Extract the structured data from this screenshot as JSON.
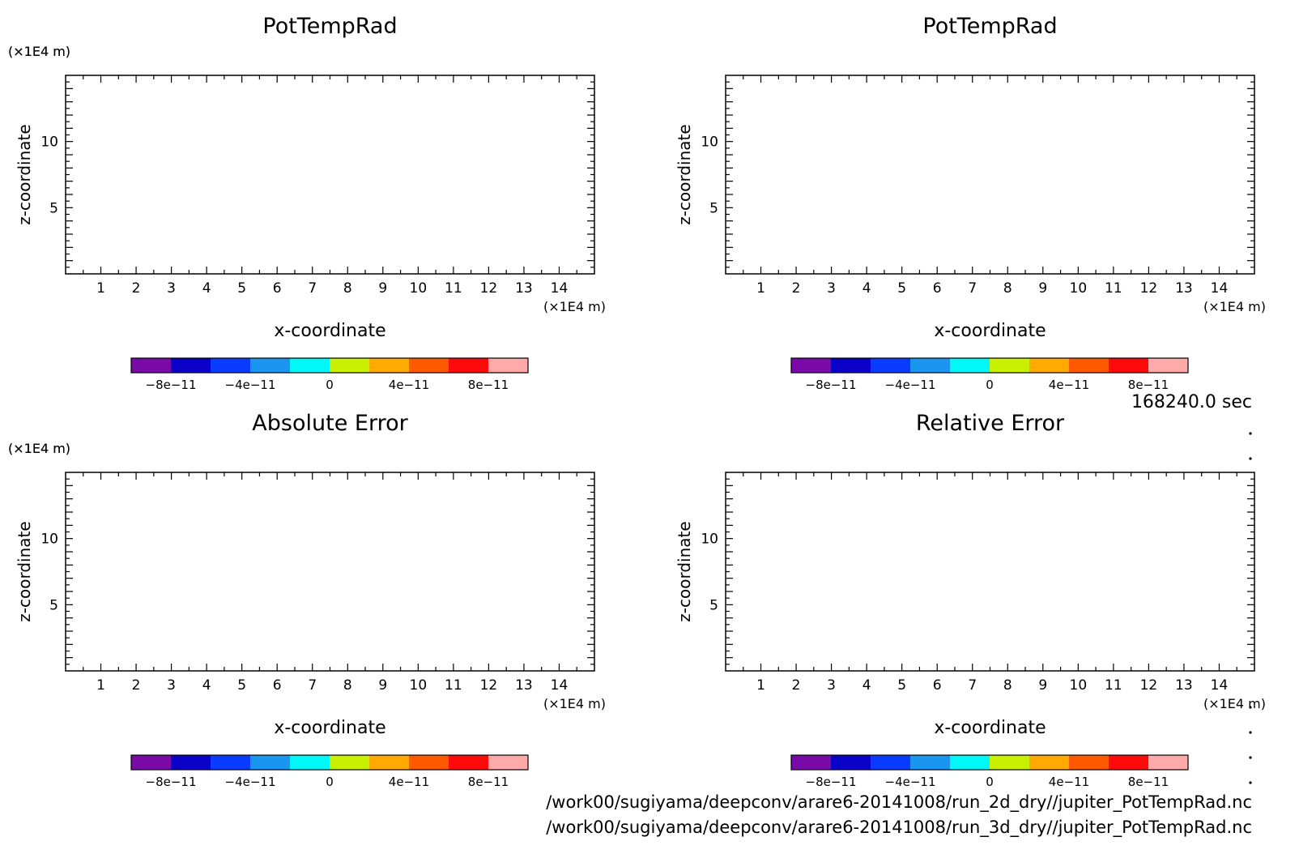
{
  "time_label": "168240.0 sec",
  "files": [
    "/work00/sugiyama/deepconv/arare6-20141008/run_2d_dry//jupiter_PotTempRad.nc",
    "/work00/sugiyama/deepconv/arare6-20141008/run_3d_dry//jupiter_PotTempRad.nc"
  ],
  "colorbar_colors": [
    "#7a0aa8",
    "#0a00c8",
    "#0a3cff",
    "#1a96f0",
    "#00f8f8",
    "#c8f000",
    "#ffaa00",
    "#ff5a00",
    "#ff0a0a",
    "#ffaaaa"
  ],
  "chart_data": [
    {
      "type": "heatmap",
      "title": "PotTempRad",
      "xlabel": "x-coordinate",
      "ylabel": "z-coordinate",
      "x_unit": "(×1E4 m)",
      "y_unit": "(×1E4 m)",
      "xlim": [
        0,
        15
      ],
      "ylim": [
        0,
        15
      ],
      "x_ticks": [
        "1",
        "2",
        "3",
        "4",
        "5",
        "6",
        "7",
        "8",
        "9",
        "10",
        "11",
        "12",
        "13",
        "14"
      ],
      "y_ticks": [
        "5",
        "10"
      ],
      "colorbar_labels": [
        "−8e−11",
        "−4e−11",
        "0",
        "4e−11",
        "8e−11"
      ]
    },
    {
      "type": "heatmap",
      "title": "PotTempRad",
      "xlabel": "x-coordinate",
      "ylabel": "z-coordinate",
      "x_unit": "(×1E4 m)",
      "y_unit": "(×1E4 m)",
      "xlim": [
        0,
        15
      ],
      "ylim": [
        0,
        15
      ],
      "x_ticks": [
        "1",
        "2",
        "3",
        "4",
        "5",
        "6",
        "7",
        "8",
        "9",
        "10",
        "11",
        "12",
        "13",
        "14"
      ],
      "y_ticks": [
        "5",
        "10"
      ],
      "colorbar_labels": [
        "−8e−11",
        "−4e−11",
        "0",
        "4e−11",
        "8e−11"
      ]
    },
    {
      "type": "heatmap",
      "title": "Absolute Error",
      "xlabel": "x-coordinate",
      "ylabel": "z-coordinate",
      "x_unit": "(×1E4 m)",
      "y_unit": "(×1E4 m)",
      "xlim": [
        0,
        15
      ],
      "ylim": [
        0,
        15
      ],
      "x_ticks": [
        "1",
        "2",
        "3",
        "4",
        "5",
        "6",
        "7",
        "8",
        "9",
        "10",
        "11",
        "12",
        "13",
        "14"
      ],
      "y_ticks": [
        "5",
        "10"
      ],
      "colorbar_labels": [
        "−8e−11",
        "−4e−11",
        "0",
        "4e−11",
        "8e−11"
      ]
    },
    {
      "type": "heatmap",
      "title": "Relative Error",
      "xlabel": "x-coordinate",
      "ylabel": "z-coordinate",
      "x_unit": "(×1E4 m)",
      "y_unit": "(×1E4 m)",
      "xlim": [
        0,
        15
      ],
      "ylim": [
        0,
        15
      ],
      "x_ticks": [
        "1",
        "2",
        "3",
        "4",
        "5",
        "6",
        "7",
        "8",
        "9",
        "10",
        "11",
        "12",
        "13",
        "14"
      ],
      "y_ticks": [
        "5",
        "10"
      ],
      "colorbar_labels": [
        "−8e−11",
        "−4e−11",
        "0",
        "4e−11",
        "8e−11"
      ]
    }
  ]
}
